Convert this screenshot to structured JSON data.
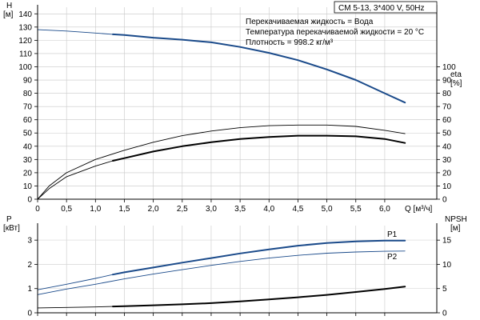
{
  "chart_data": [
    {
      "type": "line",
      "panel": "top",
      "title": "CM 5-13, 3*400 V, 50Hz",
      "notes": [
        "Перекачиваемая жидкость = Вода",
        "Температура перекачиваемой жидкости = 20 °C",
        "Плотность = 998.2 кг/м³"
      ],
      "xlabel": "Q [м³/ч]",
      "xlim": [
        0,
        6.9
      ],
      "xticks": [
        0,
        0.5,
        1.0,
        1.5,
        2.0,
        2.5,
        3.0,
        3.5,
        4.0,
        4.5,
        5.0,
        5.5,
        6.0
      ],
      "xtick_labels": [
        "0",
        "0,5",
        "1,0",
        "1,5",
        "2,0",
        "2,5",
        "3,0",
        "3,5",
        "4,0",
        "4,5",
        "5,0",
        "5,5",
        "6,0"
      ],
      "left_axis": {
        "label": "H",
        "unit": "[м]",
        "ylim": [
          0,
          145
        ],
        "ticks": [
          0,
          10,
          20,
          30,
          40,
          50,
          60,
          70,
          80,
          90,
          100,
          110,
          120,
          130,
          140
        ]
      },
      "right_axis": {
        "label": "eta",
        "unit": "[%]",
        "ylim": [
          0,
          145
        ],
        "ticks": [
          0,
          10,
          20,
          30,
          40,
          50,
          60,
          70,
          80,
          90,
          100
        ]
      },
      "grid": true,
      "series": [
        {
          "name": "",
          "axis": "left",
          "color": "#1a4a8a",
          "width": 0.9,
          "x": [
            0,
            0.5,
            1.0,
            1.3
          ],
          "y": [
            128,
            127,
            125.5,
            124.5
          ]
        },
        {
          "name": "",
          "axis": "left",
          "color": "#1a4a8a",
          "width": 2.0,
          "x": [
            1.3,
            1.5,
            2.0,
            2.5,
            3.0,
            3.5,
            4.0,
            4.5,
            5.0,
            5.5,
            6.0,
            6.35
          ],
          "y": [
            124.5,
            124,
            122,
            120.5,
            118.5,
            115,
            110.5,
            105,
            98,
            90,
            80,
            73
          ]
        },
        {
          "name": "",
          "axis": "right",
          "color": "#000000",
          "width": 0.9,
          "x": [
            0,
            0.2,
            0.5,
            1.0,
            1.5,
            2.0,
            2.5,
            3.0,
            3.5,
            4.0,
            4.5,
            5.0,
            5.5,
            6.0,
            6.35
          ],
          "y": [
            0,
            10,
            20,
            30,
            37,
            43,
            48,
            51.5,
            54,
            55.5,
            56,
            56,
            55,
            52,
            49.5
          ]
        },
        {
          "name": "",
          "axis": "right",
          "color": "#000000",
          "width": 0.9,
          "x": [
            0,
            0.2,
            0.5,
            1.0,
            1.3
          ],
          "y": [
            0,
            8,
            17,
            25,
            29
          ]
        },
        {
          "name": "",
          "axis": "right",
          "color": "#000000",
          "width": 2.0,
          "x": [
            1.3,
            1.5,
            2.0,
            2.5,
            3.0,
            3.5,
            4.0,
            4.5,
            5.0,
            5.5,
            6.0,
            6.35
          ],
          "y": [
            29,
            31,
            36,
            40,
            43,
            45.5,
            47,
            48,
            48,
            47.5,
            45.5,
            42.5
          ]
        }
      ]
    },
    {
      "type": "line",
      "panel": "bottom",
      "xlim": [
        0,
        6.9
      ],
      "left_axis": {
        "label": "P",
        "unit": "[кВт]",
        "ylim": [
          0,
          3.6
        ],
        "ticks": [
          0,
          1,
          2,
          3
        ]
      },
      "right_axis": {
        "label": "NPSH",
        "unit": "[м]",
        "ylim": [
          0,
          18
        ],
        "ticks": [
          0,
          5,
          10,
          15
        ]
      },
      "grid": true,
      "series": [
        {
          "name": "",
          "axis": "left",
          "color": "#1a4a8a",
          "width": 0.9,
          "x": [
            0,
            0.5,
            1.0,
            1.3
          ],
          "y": [
            0.95,
            1.18,
            1.42,
            1.58
          ]
        },
        {
          "name": "P1",
          "axis": "left",
          "color": "#1a4a8a",
          "width": 2.0,
          "x": [
            1.3,
            1.5,
            2.0,
            2.5,
            3.0,
            3.5,
            4.0,
            4.5,
            5.0,
            5.5,
            6.0,
            6.35
          ],
          "y": [
            1.58,
            1.67,
            1.87,
            2.07,
            2.26,
            2.45,
            2.62,
            2.77,
            2.88,
            2.95,
            2.98,
            2.98
          ]
        },
        {
          "name": "P2",
          "axis": "left",
          "color": "#1a4a8a",
          "width": 0.9,
          "x": [
            0,
            0.5,
            1.0,
            1.5,
            2.0,
            2.5,
            3.0,
            3.5,
            4.0,
            4.5,
            5.0,
            5.5,
            6.0,
            6.35
          ],
          "y": [
            0.75,
            0.98,
            1.18,
            1.4,
            1.6,
            1.78,
            1.96,
            2.12,
            2.26,
            2.37,
            2.46,
            2.51,
            2.54,
            2.55
          ]
        },
        {
          "name": "",
          "axis": "right",
          "color": "#000000",
          "width": 0.9,
          "x": [
            0,
            0.5,
            1.0,
            1.3
          ],
          "y": [
            1.0,
            1.1,
            1.2,
            1.3
          ]
        },
        {
          "name": "",
          "axis": "right",
          "color": "#000000",
          "width": 2.0,
          "x": [
            1.3,
            1.5,
            2.0,
            2.5,
            3.0,
            3.5,
            4.0,
            4.5,
            5.0,
            5.5,
            6.0,
            6.35
          ],
          "y": [
            1.3,
            1.35,
            1.55,
            1.75,
            2.0,
            2.35,
            2.75,
            3.2,
            3.7,
            4.3,
            4.9,
            5.4
          ]
        }
      ]
    }
  ]
}
